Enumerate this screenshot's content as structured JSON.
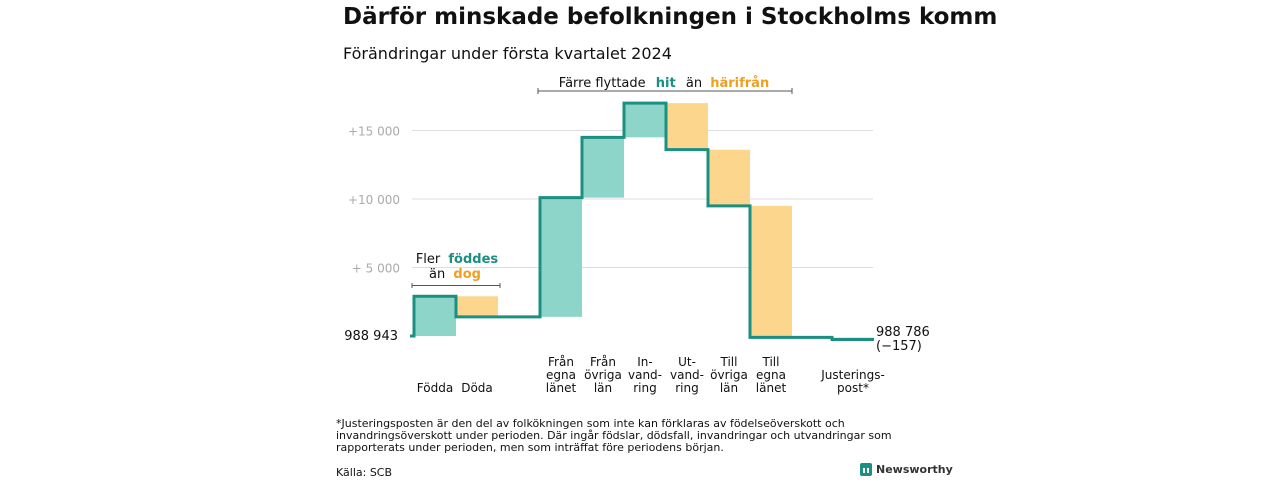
{
  "title": "Därför minskade befolkningen i Stockholms komm",
  "subtitle": "Förändringar under första kvartalet 2024",
  "footnote": "*Justeringsposten är den del av folkökningen som inte kan förklaras av födelseöverskott och invandringsöverskott under perioden. Där ingår födslar, dödsfall, invandringar och utvandringar som rapporterats under perioden, men som inträffat före periodens början.",
  "source": "Källa: SCB",
  "brand": "Newsworthy",
  "colors": {
    "increase": "#8ed5c9",
    "decrease": "#fdd68e",
    "line": "#1a8f82",
    "accent_teal": "#1a8f82",
    "accent_orange": "#f0a020",
    "grid": "#dddddd"
  },
  "annotations": {
    "births": {
      "line1": "Fler",
      "line1_highlight": "föddes",
      "line2": "än",
      "line2_highlight": "dog"
    },
    "migration": {
      "prefix": "Färre flyttade",
      "highlight1": "hit",
      "middle": "än",
      "highlight2": "härifrån"
    }
  },
  "chart_data": {
    "type": "waterfall",
    "start": {
      "label": "988 943",
      "value": 0
    },
    "end": {
      "label": "988 786",
      "change_label": "(−157)",
      "value": -157
    },
    "y_ticks": [
      {
        "value": 5000,
        "label": "+  5 000"
      },
      {
        "value": 10000,
        "label": "+10  000"
      },
      {
        "value": 15000,
        "label": "+15  000"
      }
    ],
    "ylim": [
      0,
      17500
    ],
    "steps": [
      {
        "label": [
          "Födda"
        ],
        "change": 2900
      },
      {
        "label": [
          "Döda"
        ],
        "change": -1500
      },
      {
        "label": [
          "Från",
          "egna",
          "länet"
        ],
        "change": 8700
      },
      {
        "label": [
          "Från",
          "övriga",
          "län"
        ],
        "change": 4400
      },
      {
        "label": [
          "In-",
          "vand-",
          "ring"
        ],
        "change": 2500
      },
      {
        "label": [
          "Ut-",
          "vand-",
          "ring"
        ],
        "change": -3400
      },
      {
        "label": [
          "Till",
          "övriga",
          "län"
        ],
        "change": -4100
      },
      {
        "label": [
          "Till",
          "egna",
          "länet"
        ],
        "change": -9600
      },
      {
        "label": [
          "Justerings-",
          "post*"
        ],
        "change": -157
      }
    ]
  }
}
